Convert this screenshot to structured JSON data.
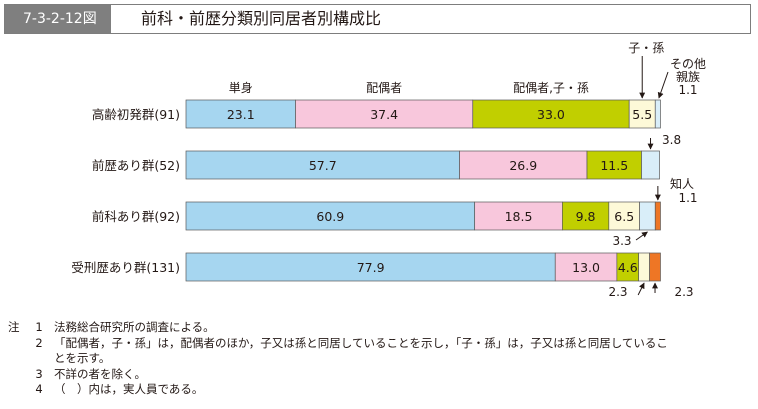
{
  "figure": {
    "id": "7-3-2-12図",
    "title": "前科・前歴分類別同居者別構成比"
  },
  "chart_data": {
    "type": "bar",
    "orientation": "horizontal",
    "stacked": true,
    "percent": true,
    "legend_labels": [
      "単身",
      "配偶者",
      "配偶者,子・孫",
      "子・孫",
      "その他親族",
      "知人"
    ],
    "categories": [
      "高齢初発群(91)",
      "前歴あり群(52)",
      "前科あり群(92)",
      "受刑歴あり群(131)"
    ],
    "series": [
      {
        "name": "単身",
        "color": "#a6d6f0",
        "values": [
          23.1,
          57.7,
          60.9,
          77.9
        ]
      },
      {
        "name": "配偶者",
        "color": "#f8c7dc",
        "values": [
          37.4,
          26.9,
          18.5,
          13.0
        ]
      },
      {
        "name": "配偶者,子・孫",
        "color": "#c1cf00",
        "values": [
          33.0,
          11.5,
          9.8,
          4.6
        ]
      },
      {
        "name": "子・孫",
        "color": "#fdf9d8",
        "values": [
          5.5,
          0.0,
          6.5,
          2.3
        ]
      },
      {
        "name": "その他親族",
        "color": "#d9eef9",
        "values": [
          1.1,
          3.8,
          3.3,
          0.0
        ]
      },
      {
        "name": "知人",
        "color": "#ee7625",
        "values": [
          0.0,
          0.0,
          1.1,
          2.3
        ]
      }
    ],
    "annotations": [
      {
        "text": "子・孫"
      },
      {
        "text": "その他"
      },
      {
        "text": "親族"
      },
      {
        "text": "1.1"
      },
      {
        "text": "3.8"
      },
      {
        "text": "知人"
      },
      {
        "text": "1.1"
      },
      {
        "text": "3.3"
      },
      {
        "text": "2.3"
      },
      {
        "text": "2.3"
      }
    ]
  },
  "notes": {
    "prefix": "注",
    "items": [
      {
        "num": "1",
        "lines": [
          "法務総合研究所の調査による。"
        ]
      },
      {
        "num": "2",
        "lines": [
          "「配偶者，子・孫」は，配偶者のほか，子又は孫と同居していることを示し，「子・孫」は，子又は孫と同居しているこ",
          "とを示す。"
        ]
      },
      {
        "num": "3",
        "lines": [
          "不詳の者を除く。"
        ]
      },
      {
        "num": "4",
        "lines": [
          "（　）内は，実人員である。"
        ]
      }
    ]
  }
}
